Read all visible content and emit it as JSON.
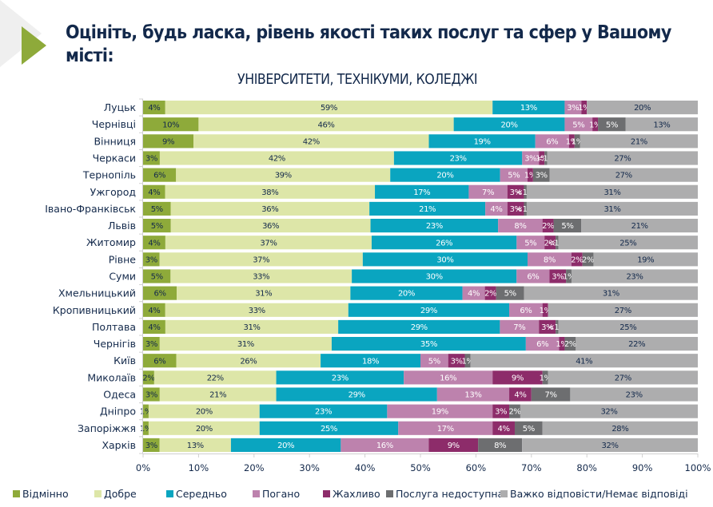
{
  "slide": {
    "title": "Оцініть, будь ласка, рівень якості таких послуг та сфер у Вашому місті:",
    "arrow_color": "#8eaa3a"
  },
  "chart_data": {
    "type": "bar",
    "orientation": "horizontal",
    "stacked": "100%",
    "title": "УНІВЕРСИТЕТИ, ТЕХНІКУМИ, КОЛЕДЖІ",
    "xlabel": "",
    "ylabel": "",
    "xlim": [
      0,
      100
    ],
    "x_ticks": [
      "0%",
      "10%",
      "20%",
      "30%",
      "40%",
      "50%",
      "60%",
      "70%",
      "80%",
      "90%",
      "100%"
    ],
    "grid": false,
    "legend_position": "bottom",
    "categories": [
      "Луцьк",
      "Чернівці",
      "Вінниця",
      "Черкаси",
      "Тернопіль",
      "Ужгород",
      "Івано-Франківськ",
      "Львів",
      "Житомир",
      "Рівне",
      "Суми",
      "Хмельницький",
      "Кропивницький",
      "Полтава",
      "Чернігів",
      "Київ",
      "Миколаїв",
      "Одеса",
      "Дніпро",
      "Запоріжжя",
      "Харків"
    ],
    "series": [
      {
        "name": "Відмінно",
        "color": "#8eaa3a",
        "label_color": "#13294b",
        "values": [
          4,
          10,
          9,
          3,
          6,
          4,
          5,
          5,
          4,
          3,
          5,
          6,
          4,
          4,
          3,
          6,
          2,
          3,
          1,
          1,
          3
        ],
        "labels": [
          "4%",
          "10%",
          "9%",
          "3%",
          "6%",
          "4%",
          "5%",
          "5%",
          "4%",
          "3%",
          "5%",
          "6%",
          "4%",
          "4%",
          "3%",
          "6%",
          "2%",
          "3%",
          "1%",
          "1%",
          "3%"
        ]
      },
      {
        "name": "Добре",
        "color": "#dde6a8",
        "label_color": "#13294b",
        "values": [
          59,
          46,
          42,
          42,
          39,
          38,
          36,
          36,
          37,
          37,
          33,
          31,
          33,
          31,
          31,
          26,
          22,
          21,
          20,
          20,
          13
        ],
        "labels": [
          "59%",
          "46%",
          "42%",
          "42%",
          "39%",
          "38%",
          "36%",
          "36%",
          "37%",
          "37%",
          "33%",
          "31%",
          "33%",
          "31%",
          "31%",
          "26%",
          "22%",
          "21%",
          "20%",
          "20%",
          "13%"
        ]
      },
      {
        "name": "Середньо",
        "color": "#0aa5c0",
        "label_color": "#ffffff",
        "values": [
          13,
          20,
          19,
          23,
          20,
          17,
          21,
          23,
          26,
          30,
          30,
          20,
          29,
          29,
          35,
          18,
          23,
          29,
          23,
          25,
          20
        ],
        "labels": [
          "13%",
          "20%",
          "19%",
          "23%",
          "20%",
          "17%",
          "21%",
          "23%",
          "26%",
          "30%",
          "30%",
          "20%",
          "29%",
          "29%",
          "35%",
          "18%",
          "23%",
          "29%",
          "23%",
          "25%",
          "20%"
        ]
      },
      {
        "name": "Погано",
        "color": "#bd82ad",
        "label_color": "#ffffff",
        "values": [
          3,
          5,
          6,
          3,
          5,
          7,
          4,
          8,
          5,
          8,
          6,
          4,
          6,
          7,
          6,
          5,
          16,
          13,
          19,
          17,
          16
        ],
        "labels": [
          "3%",
          "5%",
          "6%",
          "3%",
          "5%",
          "7%",
          "4%",
          "8%",
          "5%",
          "8%",
          "6%",
          "4%",
          "6%",
          "7%",
          "6%",
          "5%",
          "16%",
          "13%",
          "19%",
          "17%",
          "16%"
        ]
      },
      {
        "name": "Жахливо",
        "color": "#8d2c6a",
        "label_color": "#ffffff",
        "values": [
          1,
          1,
          1,
          1,
          1,
          3,
          3,
          2,
          2,
          2,
          3,
          2,
          1,
          3,
          1,
          3,
          9,
          4,
          3,
          4,
          9
        ],
        "labels": [
          "1%",
          "1%",
          "1%",
          "1%",
          "1%",
          "3%",
          "3%",
          "2%",
          "2%",
          "2%",
          "3%",
          "2%",
          "1%",
          "3%",
          "1%",
          "3%",
          "9%",
          "4%",
          "3%",
          "4%",
          "9%"
        ]
      },
      {
        "name": "Послуга недоступна",
        "color": "#6d6e70",
        "label_color": "#ffffff",
        "values": [
          0,
          5,
          1,
          0.5,
          3,
          0.5,
          0.5,
          5,
          0.5,
          2,
          1,
          5,
          0,
          0.5,
          2,
          1,
          1,
          7,
          2,
          5,
          8
        ],
        "labels": [
          "",
          "5%",
          "1%",
          "<1%",
          "3%",
          "<1%",
          "<1%",
          "5%",
          "<1%",
          "2%",
          "1%",
          "5%",
          "",
          "<1%",
          "2%",
          "1%",
          "1%",
          "7%",
          "2%",
          "5%",
          "8%"
        ]
      },
      {
        "name": "Важко відповісти/Немає відповіді",
        "color": "#adadae",
        "label_color": "#13294b",
        "values": [
          20,
          13,
          21,
          27,
          27,
          31,
          31,
          21,
          25,
          19,
          23,
          31,
          27,
          25,
          22,
          41,
          27,
          23,
          32,
          28,
          32
        ],
        "labels": [
          "20%",
          "13%",
          "21%",
          "27%",
          "27%",
          "31%",
          "31%",
          "21%",
          "25%",
          "19%",
          "23%",
          "31%",
          "27%",
          "25%",
          "22%",
          "41%",
          "27%",
          "23%",
          "32%",
          "28%",
          "32%"
        ]
      }
    ]
  }
}
